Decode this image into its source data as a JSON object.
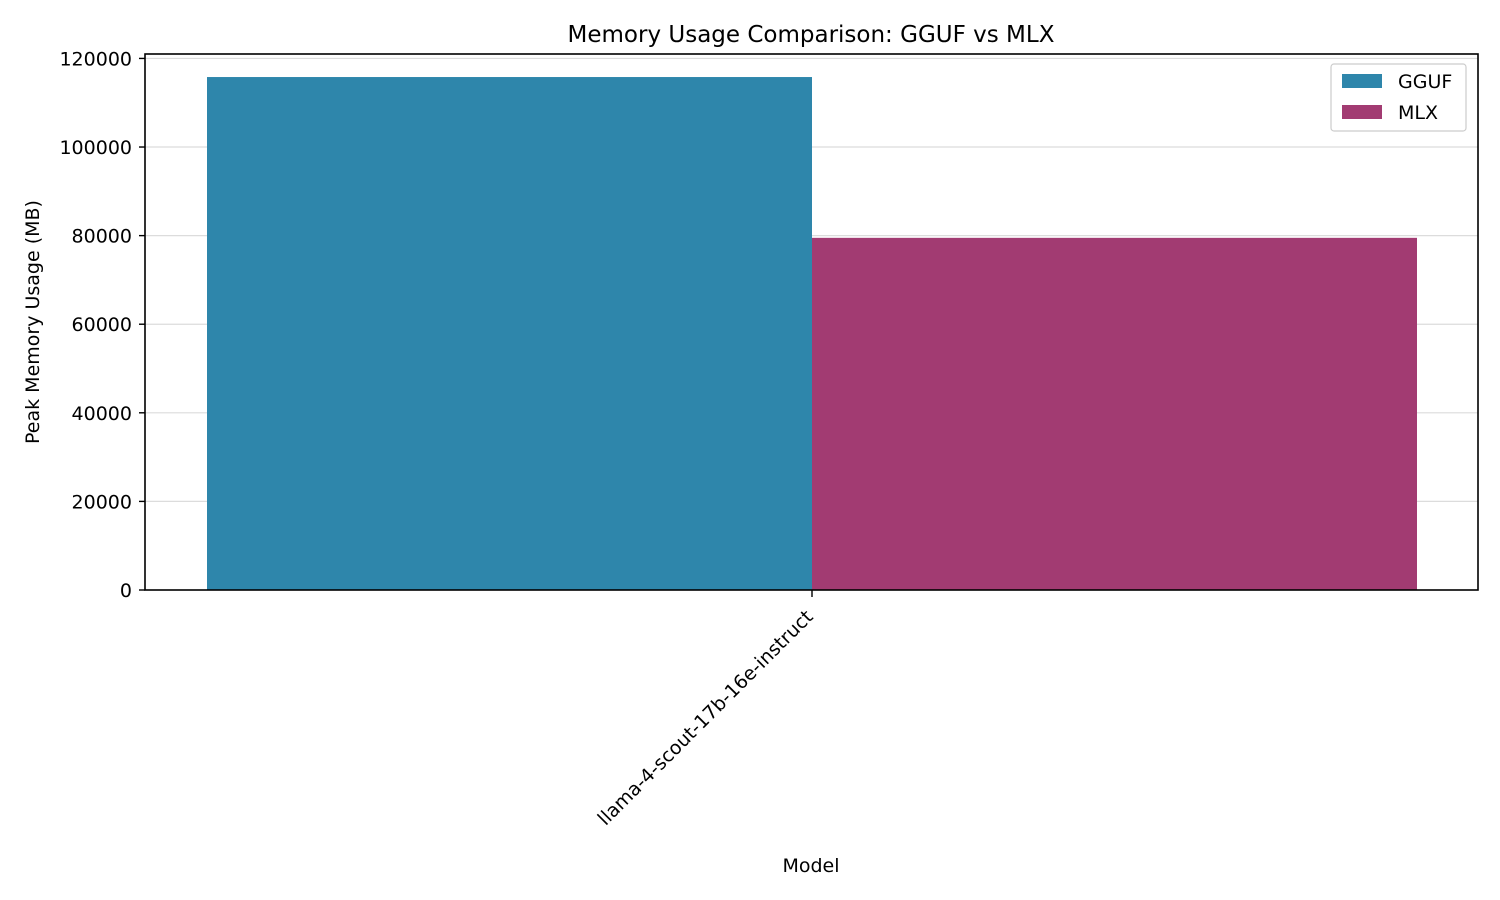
{
  "chart_data": {
    "type": "bar",
    "title": "Memory Usage Comparison: GGUF vs MLX",
    "xlabel": "Model",
    "ylabel": "Peak Memory Usage (MB)",
    "categories": [
      "llama-4-scout-17b-16e-instruct"
    ],
    "series": [
      {
        "name": "GGUF",
        "values": [
          115800
        ],
        "color": "#2e86ab"
      },
      {
        "name": "MLX",
        "values": [
          79500
        ],
        "color": "#a23b72"
      }
    ],
    "ylim": [
      0,
      121000
    ],
    "yticks": [
      0,
      20000,
      40000,
      60000,
      80000,
      100000,
      120000
    ],
    "ytick_labels": [
      "0",
      "20000",
      "40000",
      "60000",
      "80000",
      "100000",
      "120000"
    ],
    "grid": "y",
    "legend": "top-right"
  }
}
